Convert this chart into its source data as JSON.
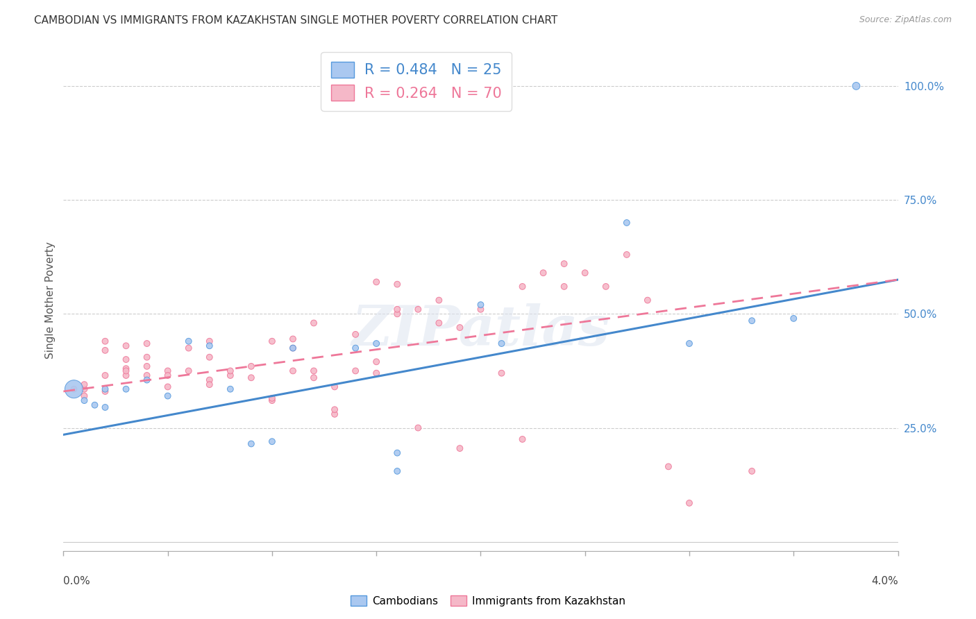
{
  "title": "CAMBODIAN VS IMMIGRANTS FROM KAZAKHSTAN SINGLE MOTHER POVERTY CORRELATION CHART",
  "source": "Source: ZipAtlas.com",
  "ylabel": "Single Mother Poverty",
  "ytick_values": [
    0.25,
    0.5,
    0.75,
    1.0
  ],
  "xlim": [
    0.0,
    0.04
  ],
  "ylim": [
    -0.02,
    1.08
  ],
  "legend_blue_text": "R = 0.484   N = 25",
  "legend_pink_text": "R = 0.264   N = 70",
  "blue_fill": "#aac8f0",
  "pink_fill": "#f5b8c8",
  "blue_edge": "#5599dd",
  "pink_edge": "#ee7799",
  "blue_line": "#4488cc",
  "pink_line": "#ee7799",
  "watermark": "ZIPatlas",
  "camb_x": [
    0.0005,
    0.001,
    0.0015,
    0.002,
    0.002,
    0.003,
    0.004,
    0.005,
    0.006,
    0.007,
    0.008,
    0.009,
    0.01,
    0.011,
    0.014,
    0.015,
    0.016,
    0.016,
    0.02,
    0.021,
    0.027,
    0.03,
    0.033,
    0.035,
    0.038
  ],
  "camb_y": [
    0.335,
    0.31,
    0.3,
    0.335,
    0.295,
    0.335,
    0.355,
    0.32,
    0.44,
    0.43,
    0.335,
    0.215,
    0.22,
    0.425,
    0.425,
    0.435,
    0.195,
    0.155,
    0.52,
    0.435,
    0.7,
    0.435,
    0.485,
    0.49,
    1.0
  ],
  "camb_sizes": [
    350,
    40,
    40,
    40,
    40,
    40,
    40,
    40,
    40,
    40,
    40,
    40,
    40,
    40,
    40,
    40,
    40,
    40,
    40,
    40,
    40,
    40,
    40,
    40,
    60
  ],
  "kaz_x": [
    0.0005,
    0.001,
    0.001,
    0.001,
    0.002,
    0.002,
    0.002,
    0.002,
    0.003,
    0.003,
    0.003,
    0.003,
    0.003,
    0.004,
    0.004,
    0.004,
    0.004,
    0.005,
    0.005,
    0.005,
    0.006,
    0.006,
    0.007,
    0.007,
    0.007,
    0.007,
    0.008,
    0.008,
    0.009,
    0.009,
    0.01,
    0.01,
    0.01,
    0.011,
    0.011,
    0.011,
    0.012,
    0.012,
    0.012,
    0.013,
    0.013,
    0.013,
    0.014,
    0.014,
    0.015,
    0.015,
    0.015,
    0.016,
    0.016,
    0.016,
    0.017,
    0.017,
    0.018,
    0.018,
    0.019,
    0.019,
    0.02,
    0.021,
    0.022,
    0.022,
    0.023,
    0.024,
    0.024,
    0.025,
    0.026,
    0.027,
    0.028,
    0.029,
    0.03,
    0.033
  ],
  "kaz_y": [
    0.335,
    0.335,
    0.32,
    0.345,
    0.365,
    0.33,
    0.42,
    0.44,
    0.365,
    0.38,
    0.4,
    0.43,
    0.375,
    0.385,
    0.405,
    0.365,
    0.435,
    0.375,
    0.34,
    0.365,
    0.375,
    0.425,
    0.405,
    0.355,
    0.345,
    0.44,
    0.365,
    0.375,
    0.36,
    0.385,
    0.31,
    0.315,
    0.44,
    0.375,
    0.425,
    0.445,
    0.36,
    0.375,
    0.48,
    0.34,
    0.28,
    0.29,
    0.375,
    0.455,
    0.57,
    0.37,
    0.395,
    0.5,
    0.51,
    0.565,
    0.51,
    0.25,
    0.53,
    0.48,
    0.47,
    0.205,
    0.51,
    0.37,
    0.56,
    0.225,
    0.59,
    0.56,
    0.61,
    0.59,
    0.56,
    0.63,
    0.53,
    0.165,
    0.085,
    0.155
  ],
  "kaz_sizes": [
    40,
    40,
    40,
    40,
    40,
    40,
    40,
    40,
    40,
    40,
    40,
    40,
    40,
    40,
    40,
    40,
    40,
    40,
    40,
    40,
    40,
    40,
    40,
    40,
    40,
    40,
    40,
    40,
    40,
    40,
    40,
    40,
    40,
    40,
    40,
    40,
    40,
    40,
    40,
    40,
    40,
    40,
    40,
    40,
    40,
    40,
    40,
    40,
    40,
    40,
    40,
    40,
    40,
    40,
    40,
    40,
    40,
    40,
    40,
    40,
    40,
    40,
    40,
    40,
    40,
    40,
    40,
    40,
    40,
    40
  ],
  "blue_trend": [
    0.235,
    0.575
  ],
  "pink_trend": [
    0.33,
    0.575
  ]
}
